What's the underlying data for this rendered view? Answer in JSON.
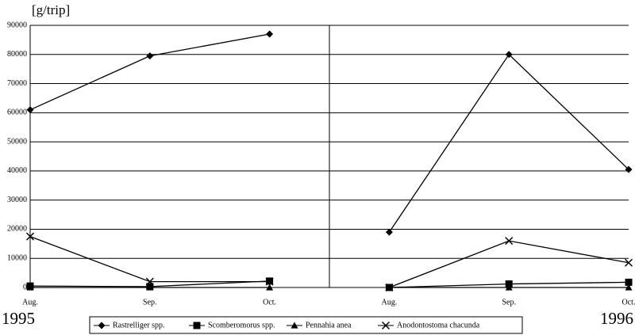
{
  "chart_data": {
    "type": "line",
    "y_label": "[g/trip]",
    "groups": [
      {
        "label": "1995",
        "categories": [
          "Aug.",
          "Sep.",
          "Oct."
        ]
      },
      {
        "label": "1996",
        "categories": [
          "Aug.",
          "Sep.",
          "Oct."
        ]
      }
    ],
    "series": [
      {
        "name": "Rastrelliger spp.",
        "color": "#000000",
        "marker": "diamond",
        "values": [
          [
            61000,
            79500,
            87000
          ],
          [
            19000,
            80000,
            40500
          ]
        ]
      },
      {
        "name": "Scomberomorus spp.",
        "color": "#000000",
        "marker": "square",
        "values": [
          [
            500,
            300,
            2200
          ],
          [
            0,
            1200,
            1800
          ]
        ]
      },
      {
        "name": "Pennahia anea",
        "color": "#000000",
        "marker": "triangle",
        "values": [
          [
            0,
            0,
            0
          ],
          [
            0,
            0,
            0
          ]
        ]
      },
      {
        "name": "Anodontostoma chacunda",
        "color": "#000000",
        "marker": "x",
        "values": [
          [
            17500,
            2000,
            2000
          ],
          [
            0,
            16000,
            8500
          ]
        ]
      }
    ],
    "ylim": [
      0,
      90000
    ],
    "yticks": [
      0,
      10000,
      20000,
      30000,
      40000,
      50000,
      60000,
      70000,
      80000,
      90000
    ],
    "grid": true
  }
}
